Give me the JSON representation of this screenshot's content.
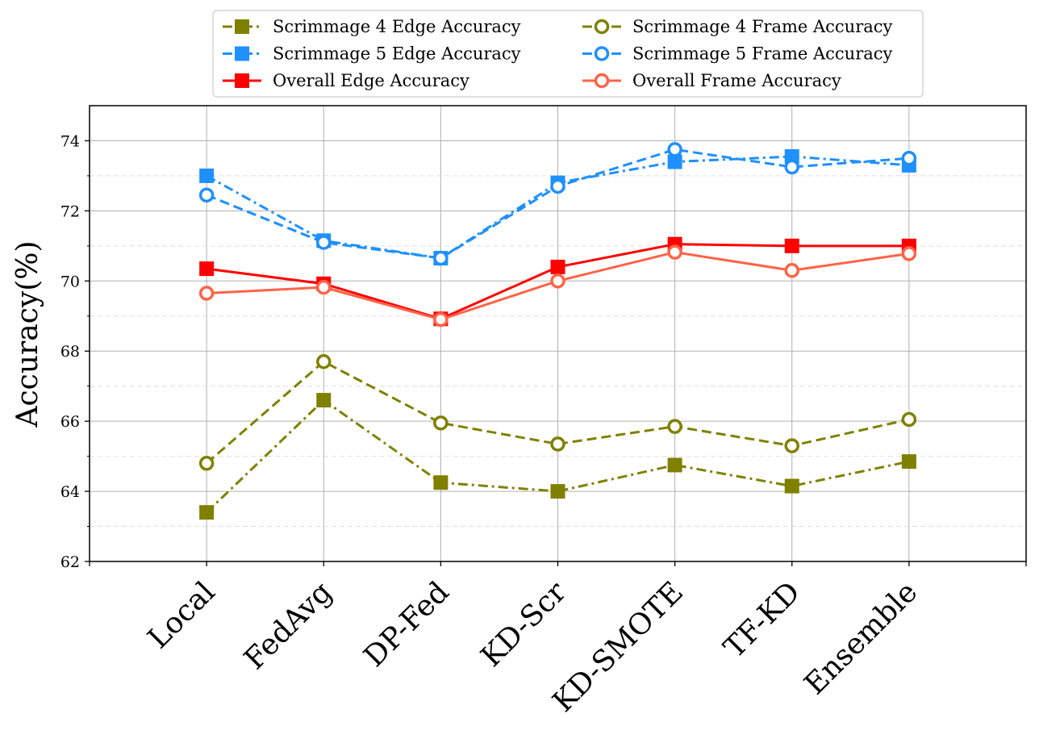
{
  "chart_data": {
    "type": "line",
    "ylabel": "Accuracy(%)",
    "xlabel": "",
    "categories": [
      "Local",
      "FedAvg",
      "DP-Fed",
      "KD-Scr",
      "KD-SMOTE",
      "TF-KD",
      "Ensemble"
    ],
    "xlim": [
      -1,
      7
    ],
    "ylim": [
      62,
      75
    ],
    "yticks": [
      62,
      64,
      66,
      68,
      70,
      72,
      74
    ],
    "grid": true,
    "legend_position": "top-center",
    "series": [
      {
        "name": "Scrimmage 4 Edge Accuracy",
        "color": "#808000",
        "linestyle": "dashdot",
        "marker": "square",
        "values": [
          63.4,
          66.6,
          64.25,
          64.0,
          64.75,
          64.15,
          64.85
        ]
      },
      {
        "name": "Scrimmage 4 Frame Accuracy",
        "color": "#808000",
        "linestyle": "dashed",
        "marker": "circle-open",
        "values": [
          64.8,
          67.7,
          65.95,
          65.35,
          65.85,
          65.3,
          66.05
        ]
      },
      {
        "name": "Scrimmage 5 Edge Accuracy",
        "color": "#1e90ff",
        "linestyle": "dashdot",
        "marker": "square",
        "values": [
          73.0,
          71.15,
          70.65,
          72.8,
          73.4,
          73.55,
          73.3
        ]
      },
      {
        "name": "Scrimmage 5 Frame Accuracy",
        "color": "#1e90ff",
        "linestyle": "dashed",
        "marker": "circle-open",
        "values": [
          72.45,
          71.1,
          70.65,
          72.7,
          73.75,
          73.25,
          73.5
        ]
      },
      {
        "name": "Overall Edge Accuracy",
        "color": "#ff0000",
        "linestyle": "solid",
        "marker": "square",
        "values": [
          70.35,
          69.92,
          68.92,
          70.4,
          71.05,
          71.0,
          71.0
        ]
      },
      {
        "name": "Overall Frame Accuracy",
        "color": "#ff6347",
        "linestyle": "solid",
        "marker": "circle-open",
        "values": [
          69.65,
          69.82,
          68.9,
          70.0,
          70.82,
          70.3,
          70.78
        ]
      }
    ],
    "legend_order": [
      0,
      1,
      2,
      3,
      4,
      5
    ]
  }
}
